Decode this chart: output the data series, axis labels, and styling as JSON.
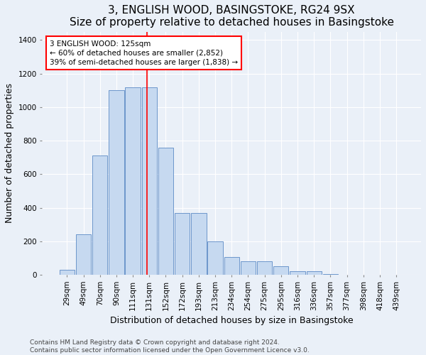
{
  "title": "3, ENGLISH WOOD, BASINGSTOKE, RG24 9SX",
  "subtitle": "Size of property relative to detached houses in Basingstoke",
  "xlabel": "Distribution of detached houses by size in Basingstoke",
  "ylabel": "Number of detached properties",
  "categories": [
    "29sqm",
    "49sqm",
    "70sqm",
    "90sqm",
    "111sqm",
    "131sqm",
    "152sqm",
    "172sqm",
    "193sqm",
    "213sqm",
    "234sqm",
    "254sqm",
    "275sqm",
    "295sqm",
    "316sqm",
    "336sqm",
    "357sqm",
    "377sqm",
    "398sqm",
    "418sqm",
    "439sqm"
  ],
  "values": [
    30,
    240,
    710,
    1100,
    1120,
    1120,
    760,
    370,
    370,
    200,
    105,
    80,
    80,
    50,
    20,
    20,
    5,
    0,
    0,
    0,
    0
  ],
  "bar_color": "#c6d9f0",
  "bar_edge_color": "#5b8ac5",
  "annotation_text": "3 ENGLISH WOOD: 125sqm\n← 60% of detached houses are smaller (2,852)\n39% of semi-detached houses are larger (1,838) →",
  "annotation_box_color": "white",
  "annotation_box_edge_color": "red",
  "ylim": [
    0,
    1450
  ],
  "yticks": [
    0,
    200,
    400,
    600,
    800,
    1000,
    1200,
    1400
  ],
  "footer_line1": "Contains HM Land Registry data © Crown copyright and database right 2024.",
  "footer_line2": "Contains public sector information licensed under the Open Government Licence v3.0.",
  "background_color": "#eaf0f8",
  "grid_color": "white",
  "title_fontsize": 11,
  "axis_label_fontsize": 9,
  "tick_fontsize": 7.5,
  "footer_fontsize": 6.5,
  "annotation_fontsize": 7.5
}
